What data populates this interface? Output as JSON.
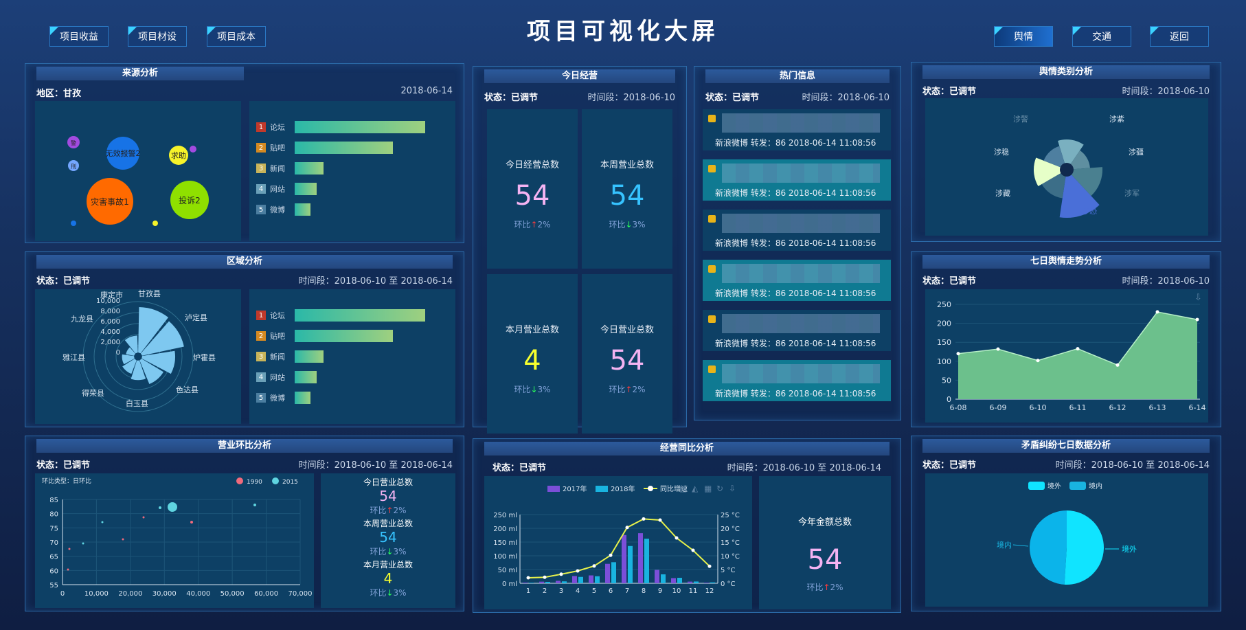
{
  "title": "项目可视化大屏",
  "nav": {
    "left": [
      "项目收益",
      "项目材设",
      "项目成本"
    ],
    "right": [
      "舆情",
      "交通",
      "返回"
    ]
  },
  "source": {
    "title": "来源分析",
    "region": "地区：甘孜",
    "date": "2018-06-14",
    "bubbles": [
      "灾害事故1",
      "投诉2",
      "无效报警2",
      "求助",
      "警",
      "刑"
    ],
    "ranks": [
      {
        "n": "1",
        "t": "论坛",
        "v": 100,
        "c": "#c0392b"
      },
      {
        "n": "2",
        "t": "贴吧",
        "v": 75,
        "c": "#d48a22"
      },
      {
        "n": "3",
        "t": "新闻",
        "v": 22,
        "c": "#c8b45a"
      },
      {
        "n": "4",
        "t": "网站",
        "v": 17,
        "c": "#6aa0b8"
      },
      {
        "n": "5",
        "t": "微博",
        "v": 12,
        "c": "#4b7ea0"
      }
    ]
  },
  "region": {
    "title": "区域分析",
    "status": "状态：已调节",
    "range": "时间段：2018-06-10 至 2018-06-14",
    "counties": [
      "甘孜县",
      "泸定县",
      "炉霍县",
      "色达县",
      "白玉县",
      "得荣县",
      "雅江县",
      "九龙县",
      "康定市"
    ],
    "ticks": [
      "10,000",
      "8,000",
      "6,000",
      "4,000",
      "2,000",
      "0"
    ],
    "ranks": [
      {
        "n": "1",
        "t": "论坛",
        "v": 100,
        "c": "#c0392b"
      },
      {
        "n": "2",
        "t": "贴吧",
        "v": 75,
        "c": "#d48a22"
      },
      {
        "n": "3",
        "t": "新闻",
        "v": 22,
        "c": "#c8b45a"
      },
      {
        "n": "4",
        "t": "网站",
        "v": 17,
        "c": "#6aa0b8"
      },
      {
        "n": "5",
        "t": "微博",
        "v": 12,
        "c": "#4b7ea0"
      }
    ]
  },
  "business": {
    "title": "营业环比分析",
    "status": "状态：已调节",
    "range": "时间段：2018-06-10 至 2018-06-14",
    "chart_label": "环比类型：日环比",
    "legend": [
      "1990",
      "2015"
    ],
    "yticks": [
      "85",
      "80",
      "75",
      "70",
      "65",
      "60",
      "55"
    ],
    "xticks": [
      "0",
      "10,000",
      "20,000",
      "30,000",
      "40,000",
      "50,000",
      "60,000",
      "70,000"
    ],
    "side": [
      {
        "label": "今日营业总数",
        "num": "54",
        "cmp": "环比",
        "arrow": "↑",
        "pct": "2%"
      },
      {
        "label": "本周营业总数",
        "num": "54",
        "cmp": "环比",
        "arrow": "↓",
        "pct": "3%"
      },
      {
        "label": "本月营业总数",
        "num": "4",
        "cmp": "环比",
        "arrow": "↓",
        "pct": "3%"
      }
    ]
  },
  "today": {
    "title": "今日经营",
    "status": "状态：已调节",
    "range": "时间段：2018-06-10",
    "cells": [
      {
        "label": "今日经营总数",
        "num": "54",
        "cmp": "环比",
        "arrow": "↑",
        "pct": "2%"
      },
      {
        "label": "本周营业总数",
        "num": "54",
        "cmp": "环比",
        "arrow": "↓",
        "pct": "3%"
      },
      {
        "label": "本月营业总数",
        "num": "4",
        "cmp": "环比",
        "arrow": "↓",
        "pct": "3%"
      },
      {
        "label": "今日营业总数",
        "num": "54",
        "cmp": "环比",
        "arrow": "↑",
        "pct": "2%"
      }
    ]
  },
  "hot": {
    "title": "热门信息",
    "status": "状态：已调节",
    "range": "时间段：2018-06-10",
    "items": [
      "新浪微博 转发：86 2018-06-14 11:08:56",
      "新浪微博 转发：86 2018-06-14 11:08:56",
      "新浪微博 转发：86 2018-06-14 11:08:56",
      "新浪微博 转发：86 2018-06-14 11:08:56",
      "新浪微博 转发：86 2018-06-14 11:08:56",
      "新浪微博 转发：86 2018-06-14 11:08:56"
    ]
  },
  "compare": {
    "title": "经营同比分析",
    "status": "状态：已调节",
    "range": "时间段：2018-06-10 至 2018-06-14",
    "side_label": "今年金额总数",
    "side_num": "54",
    "side_cmp": "环比",
    "side_arrow": "↑",
    "side_pct": "2%"
  },
  "sentiment": {
    "title": "舆情类别分析",
    "status": "状态：已调节",
    "range": "时间段：2018-06-10",
    "labels": [
      "涉警",
      "涉紫",
      "涉恐",
      "涉疆",
      "涉藏",
      "涉军",
      "涉稳"
    ]
  },
  "trend": {
    "title": "七日舆情走势分析",
    "status": "状态：已调节",
    "range": "时间段：2018-06-10"
  },
  "conflict": {
    "title": "矛盾纠纷七日数据分析",
    "status": "状态：已调节",
    "range": "时间段：2018-06-10 至 2018-06-14",
    "legend": [
      "境外",
      "境内"
    ],
    "labels": [
      "境内",
      "境外"
    ]
  },
  "chart_data": [
    {
      "type": "line",
      "title": "七日舆情走势分析",
      "categories": [
        "6-08",
        "6-09",
        "6-10",
        "6-11",
        "6-12",
        "6-13",
        "6-14"
      ],
      "values": [
        120,
        132,
        102,
        133,
        90,
        230,
        210
      ],
      "ylim": [
        0,
        250
      ],
      "yticks": [
        0,
        50,
        100,
        150,
        200,
        250
      ]
    },
    {
      "type": "bar",
      "title": "经营同比分析",
      "categories": [
        "1",
        "2",
        "3",
        "4",
        "5",
        "6",
        "7",
        "8",
        "9",
        "10",
        "11",
        "12"
      ],
      "series": [
        {
          "name": "2017年",
          "type": "bar",
          "values": [
            2.6,
            5.9,
            9,
            26.4,
            28.7,
            70.7,
            175.6,
            182.2,
            48.7,
            18.8,
            6,
            2.3
          ]
        },
        {
          "name": "2018年",
          "type": "bar",
          "values": [
            2.0,
            4.9,
            7,
            23.2,
            25.6,
            76.7,
            135.6,
            162.2,
            32.6,
            20,
            6.4,
            3.3
          ]
        },
        {
          "name": "同比增速",
          "type": "line",
          "values": [
            2,
            2.2,
            3.3,
            4.5,
            6.3,
            10.2,
            20.3,
            23.4,
            23,
            16.5,
            12,
            6.2
          ]
        }
      ],
      "ylim": [
        0,
        250
      ],
      "y2lim": [
        0,
        25
      ],
      "yticks": [
        "0 ml",
        "50 ml",
        "100 ml",
        "150 ml",
        "200 ml",
        "250 ml"
      ],
      "y2ticks": [
        "0 °C",
        "5 °C",
        "10 °C",
        "15 °C",
        "20 °C",
        "25 °C"
      ]
    },
    {
      "type": "pie",
      "title": "矛盾纠纷七日数据分析",
      "slices": [
        {
          "name": "境外",
          "value": 51
        },
        {
          "name": "境内",
          "value": 49
        }
      ]
    }
  ]
}
